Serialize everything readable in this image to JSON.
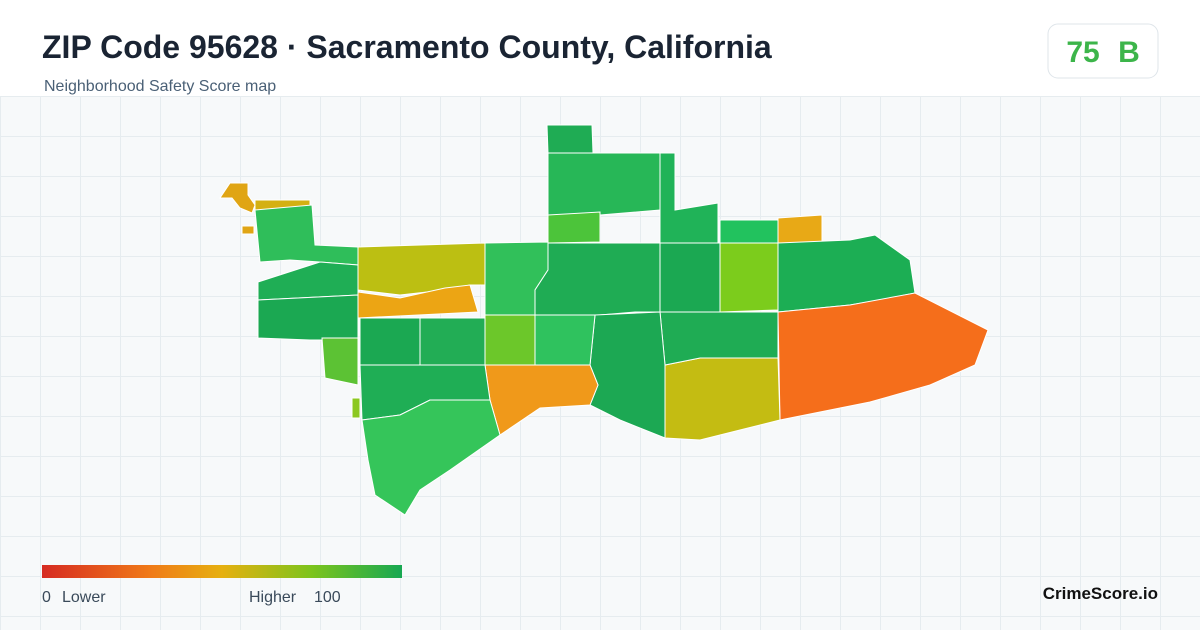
{
  "header": {
    "title": "ZIP Code 95628 · Sacramento County, California",
    "subtitle": "Neighborhood Safety Score map",
    "score": 75,
    "grade": "B"
  },
  "legend": {
    "min": "0",
    "min_label": "Lower",
    "max_label": "Higher",
    "max": "100"
  },
  "footer": {
    "brand": "CrimeScore.io"
  }
}
